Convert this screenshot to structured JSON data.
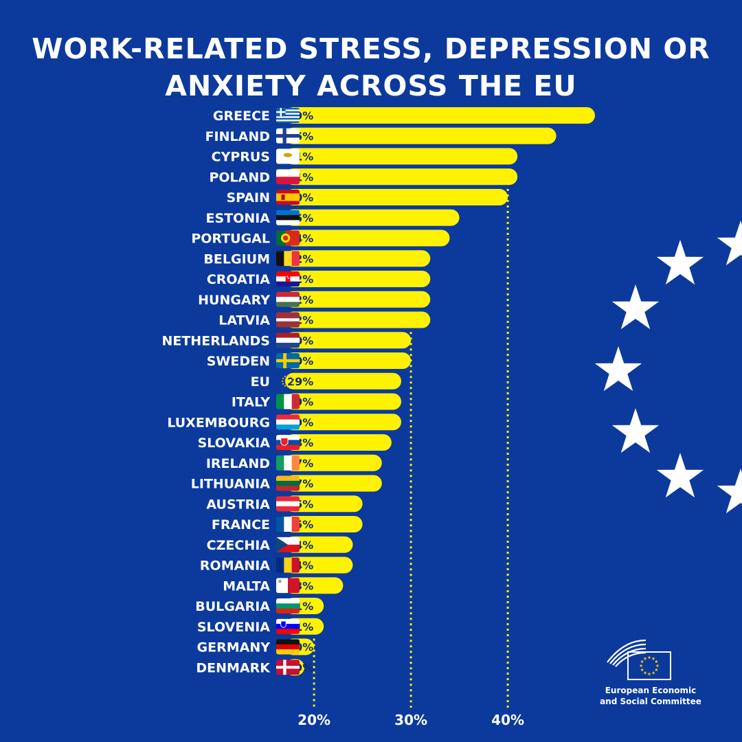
{
  "title_line1": "WORK-RELATED STRESS, DEPRESSION OR",
  "title_line2": "ANXIETY ACROSS THE EU",
  "colors": {
    "background": "#0c3a9c",
    "bar": "#fff200",
    "bar_text": "#0c2a6e",
    "gridline": "#fff200",
    "text": "#ffffff"
  },
  "chart_data": {
    "type": "bar",
    "orientation": "horizontal",
    "title": "WORK-RELATED STRESS, DEPRESSION OR ANXIETY ACROSS THE EU",
    "categories": [
      "GREECE",
      "FINLAND",
      "CYPRUS",
      "POLAND",
      "SPAIN",
      "ESTONIA",
      "PORTUGAL",
      "BELGIUM",
      "CROATIA",
      "HUNGARY",
      "LATVIA",
      "NETHERLANDS",
      "SWEDEN",
      "EU",
      "ITALY",
      "LUXEMBOURG",
      "SLOVAKIA",
      "IRELAND",
      "LITHUANIA",
      "AUSTRIA",
      "FRANCE",
      "CZECHIA",
      "ROMANIA",
      "MALTA",
      "BULGARIA",
      "SLOVENIA",
      "GERMANY",
      "DENMARK"
    ],
    "values": [
      49,
      45,
      41,
      41,
      40,
      35,
      34,
      32,
      32,
      32,
      32,
      30,
      30,
      29,
      29,
      29,
      28,
      27,
      27,
      25,
      25,
      24,
      24,
      23,
      21,
      21,
      20,
      19
    ],
    "labels": [
      "49%",
      "45%",
      "41%",
      "41%",
      "40%",
      "35%",
      "34%",
      "32%",
      "32%",
      "32%",
      "32%",
      "30%",
      "30%",
      "29%",
      "29%",
      "29%",
      "28%",
      "27%",
      "27%",
      "25%",
      "25%",
      "24%",
      "24%",
      "23%",
      "21%",
      "21%",
      "20%",
      "19%"
    ],
    "flags": [
      "greece-flag",
      "finland-flag",
      "cyprus-flag",
      "poland-flag",
      "spain-flag",
      "estonia-flag",
      "portugal-flag",
      "belgium-flag",
      "croatia-flag",
      "hungary-flag",
      "latvia-flag",
      "netherlands-flag",
      "sweden-flag",
      "eu-flag",
      "italy-flag",
      "luxembourg-flag",
      "slovakia-flag",
      "ireland-flag",
      "lithuania-flag",
      "austria-flag",
      "france-flag",
      "czechia-flag",
      "romania-flag",
      "malta-flag",
      "bulgaria-flag",
      "slovenia-flag",
      "germany-flag",
      "denmark-flag"
    ],
    "reference_lines": [
      20,
      30,
      40
    ],
    "tick_labels": [
      "20%",
      "30%",
      "40%"
    ],
    "grid": "dotted reference lines at 20%, 30%, 40%",
    "legend": "none"
  },
  "logo": {
    "name": "eesc-logo",
    "line1": "European Economic",
    "line2": "and Social Committee"
  },
  "decoration": {
    "icon": "eu-stars-arc"
  }
}
